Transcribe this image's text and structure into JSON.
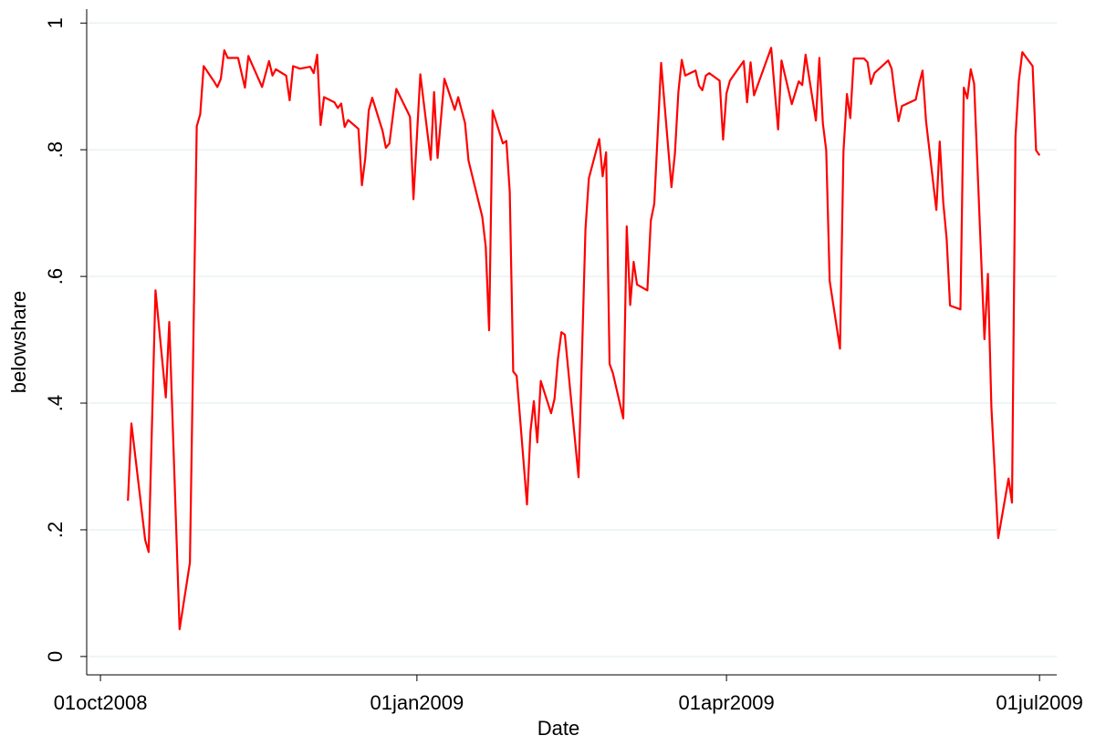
{
  "chart_data": {
    "type": "line",
    "x_label": "Date",
    "y_label": "belowshare",
    "xlim": [
      "2008-09-27",
      "2009-07-06"
    ],
    "ylim": [
      -0.029,
      1.022
    ],
    "xticks": [
      {
        "value": "2008-10-01",
        "label": "01oct2008"
      },
      {
        "value": "2009-01-01",
        "label": "01jan2009"
      },
      {
        "value": "2009-04-01",
        "label": "01apr2009"
      },
      {
        "value": "2009-07-01",
        "label": "01jul2009"
      }
    ],
    "yticks": [
      0,
      {
        "value": 0.2,
        "label": ".2"
      },
      {
        "value": 0.4,
        "label": ".4"
      },
      {
        "value": 0.6,
        "label": ".6"
      },
      {
        "value": 0.8,
        "label": ".8"
      },
      1
    ],
    "grid": true,
    "grid_color": "#eaf2f3",
    "series": [
      {
        "name": "belowshare",
        "color": "#ff0000",
        "x": [
          "2008-10-09",
          "2008-10-10",
          "2008-10-14",
          "2008-10-15",
          "2008-10-17",
          "2008-10-20",
          "2008-10-21",
          "2008-10-24",
          "2008-10-27",
          "2008-10-29",
          "2008-10-30",
          "2008-10-31",
          "2008-11-03",
          "2008-11-04",
          "2008-11-05",
          "2008-11-06",
          "2008-11-07",
          "2008-11-10",
          "2008-11-12",
          "2008-11-13",
          "2008-11-17",
          "2008-11-19",
          "2008-11-20",
          "2008-11-21",
          "2008-11-24",
          "2008-11-25",
          "2008-11-26",
          "2008-11-28",
          "2008-12-01",
          "2008-12-02",
          "2008-12-03",
          "2008-12-04",
          "2008-12-05",
          "2008-12-08",
          "2008-12-09",
          "2008-12-10",
          "2008-12-11",
          "2008-12-12",
          "2008-12-15",
          "2008-12-16",
          "2008-12-17",
          "2008-12-18",
          "2008-12-19",
          "2008-12-22",
          "2008-12-23",
          "2008-12-24",
          "2008-12-26",
          "2008-12-29",
          "2008-12-30",
          "2008-12-31",
          "2009-01-02",
          "2009-01-05",
          "2009-01-06",
          "2009-01-07",
          "2009-01-09",
          "2009-01-12",
          "2009-01-13",
          "2009-01-15",
          "2009-01-16",
          "2009-01-20",
          "2009-01-21",
          "2009-01-22",
          "2009-01-23",
          "2009-01-26",
          "2009-01-27",
          "2009-01-28",
          "2009-01-29",
          "2009-01-30",
          "2009-02-02",
          "2009-02-03",
          "2009-02-04",
          "2009-02-05",
          "2009-02-06",
          "2009-02-09",
          "2009-02-10",
          "2009-02-11",
          "2009-02-12",
          "2009-02-13",
          "2009-02-17",
          "2009-02-19",
          "2009-02-20",
          "2009-02-23",
          "2009-02-24",
          "2009-02-25",
          "2009-02-26",
          "2009-02-27",
          "2009-03-02",
          "2009-03-03",
          "2009-03-04",
          "2009-03-05",
          "2009-03-06",
          "2009-03-09",
          "2009-03-10",
          "2009-03-11",
          "2009-03-13",
          "2009-03-16",
          "2009-03-17",
          "2009-03-18",
          "2009-03-19",
          "2009-03-20",
          "2009-03-23",
          "2009-03-24",
          "2009-03-25",
          "2009-03-26",
          "2009-03-27",
          "2009-03-30",
          "2009-03-31",
          "2009-04-01",
          "2009-04-02",
          "2009-04-03",
          "2009-04-06",
          "2009-04-07",
          "2009-04-08",
          "2009-04-09",
          "2009-04-14",
          "2009-04-15",
          "2009-04-16",
          "2009-04-17",
          "2009-04-20",
          "2009-04-22",
          "2009-04-23",
          "2009-04-24",
          "2009-04-27",
          "2009-04-28",
          "2009-04-29",
          "2009-04-30",
          "2009-05-01",
          "2009-05-04",
          "2009-05-05",
          "2009-05-06",
          "2009-05-07",
          "2009-05-08",
          "2009-05-11",
          "2009-05-12",
          "2009-05-13",
          "2009-05-14",
          "2009-05-18",
          "2009-05-19",
          "2009-05-20",
          "2009-05-21",
          "2009-05-22",
          "2009-05-26",
          "2009-05-27",
          "2009-05-28",
          "2009-05-29",
          "2009-06-01",
          "2009-06-02",
          "2009-06-03",
          "2009-06-04",
          "2009-06-05",
          "2009-06-08",
          "2009-06-09",
          "2009-06-10",
          "2009-06-11",
          "2009-06-12",
          "2009-06-15",
          "2009-06-16",
          "2009-06-17",
          "2009-06-19",
          "2009-06-22",
          "2009-06-23",
          "2009-06-24",
          "2009-06-25",
          "2009-06-26",
          "2009-06-29",
          "2009-06-30",
          "2009-07-01"
        ],
        "values": [
          0.246,
          0.368,
          0.184,
          0.165,
          0.578,
          0.409,
          0.528,
          0.043,
          0.148,
          0.837,
          0.856,
          0.932,
          0.908,
          0.899,
          0.912,
          0.957,
          0.945,
          0.945,
          0.898,
          0.948,
          0.899,
          0.94,
          0.917,
          0.927,
          0.917,
          0.878,
          0.932,
          0.928,
          0.931,
          0.921,
          0.95,
          0.839,
          0.883,
          0.875,
          0.866,
          0.873,
          0.836,
          0.847,
          0.833,
          0.744,
          0.787,
          0.862,
          0.882,
          0.83,
          0.803,
          0.81,
          0.896,
          0.863,
          0.852,
          0.722,
          0.919,
          0.784,
          0.891,
          0.787,
          0.912,
          0.863,
          0.883,
          0.842,
          0.783,
          0.694,
          0.647,
          0.515,
          0.862,
          0.81,
          0.814,
          0.734,
          0.45,
          0.443,
          0.24,
          0.355,
          0.403,
          0.338,
          0.435,
          0.384,
          0.407,
          0.47,
          0.512,
          0.508,
          0.283,
          0.675,
          0.755,
          0.817,
          0.758,
          0.796,
          0.462,
          0.447,
          0.376,
          0.679,
          0.555,
          0.623,
          0.587,
          0.578,
          0.688,
          0.715,
          0.937,
          0.741,
          0.794,
          0.891,
          0.942,
          0.917,
          0.925,
          0.901,
          0.894,
          0.917,
          0.921,
          0.909,
          0.816,
          0.889,
          0.909,
          0.917,
          0.94,
          0.875,
          0.938,
          0.886,
          0.961,
          0.895,
          0.832,
          0.941,
          0.872,
          0.908,
          0.902,
          0.95,
          0.846,
          0.945,
          0.842,
          0.799,
          0.593,
          0.486,
          0.797,
          0.888,
          0.85,
          0.944,
          0.944,
          0.938,
          0.904,
          0.921,
          0.941,
          0.928,
          0.885,
          0.845,
          0.869,
          0.879,
          0.904,
          0.925,
          0.845,
          0.705,
          0.813,
          0.718,
          0.659,
          0.554,
          0.548,
          0.898,
          0.881,
          0.927,
          0.904,
          0.501,
          0.604,
          0.394,
          0.187,
          0.281,
          0.243,
          0.82,
          0.909,
          0.954,
          0.932,
          0.799,
          0.791
        ]
      }
    ]
  }
}
